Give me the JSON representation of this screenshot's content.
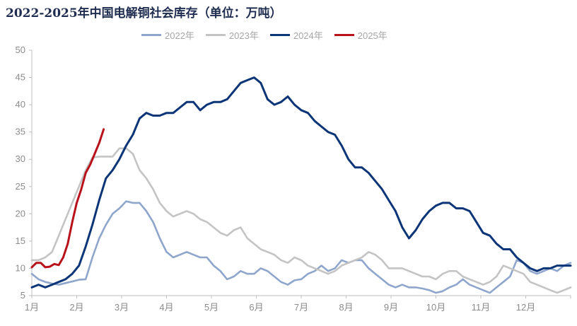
{
  "chart_data": {
    "type": "line",
    "title": "2022-2025年中国电解铜社会库存（单位：万吨）",
    "xlabel": "",
    "ylabel": "",
    "x_tick_labels": [
      "1月",
      "2月",
      "3月",
      "4月",
      "5月",
      "6月",
      "7月",
      "8月",
      "9月",
      "10月",
      "11月",
      "12月"
    ],
    "ylim": [
      5,
      50
    ],
    "yticks": [
      5,
      10,
      15,
      20,
      25,
      30,
      35,
      40,
      45,
      50
    ],
    "grid": false,
    "legend_position": "top",
    "series": [
      {
        "name": "2022年",
        "color": "#8ea6cc",
        "x": [
          0.0,
          0.15,
          0.3,
          0.45,
          0.6,
          0.75,
          0.9,
          1.05,
          1.2,
          1.35,
          1.5,
          1.65,
          1.8,
          1.95,
          2.1,
          2.25,
          2.4,
          2.55,
          2.7,
          2.85,
          3.0,
          3.15,
          3.3,
          3.45,
          3.6,
          3.75,
          3.9,
          4.05,
          4.2,
          4.35,
          4.5,
          4.65,
          4.8,
          4.95,
          5.1,
          5.25,
          5.4,
          5.55,
          5.7,
          5.85,
          6.0,
          6.15,
          6.3,
          6.45,
          6.6,
          6.75,
          6.9,
          7.05,
          7.2,
          7.35,
          7.5,
          7.65,
          7.8,
          7.95,
          8.1,
          8.25,
          8.4,
          8.55,
          8.7,
          8.85,
          9.0,
          9.15,
          9.3,
          9.45,
          9.6,
          9.75,
          9.9,
          10.05,
          10.2,
          10.35,
          10.5,
          10.65,
          10.8,
          10.95,
          11.1,
          11.25,
          11.4,
          11.55,
          11.7,
          11.85,
          12.0
        ],
        "values": [
          9.0,
          8.0,
          7.5,
          7.2,
          7.0,
          7.3,
          7.6,
          7.9,
          8.0,
          12.0,
          15.5,
          18.0,
          20.0,
          21.0,
          22.3,
          22.0,
          22.0,
          20.5,
          18.5,
          15.5,
          13.0,
          12.0,
          12.5,
          13.0,
          12.5,
          12.0,
          12.0,
          10.5,
          9.5,
          8.0,
          8.5,
          9.5,
          9.0,
          9.0,
          10.0,
          9.5,
          8.5,
          7.5,
          7.0,
          7.8,
          8.0,
          9.0,
          9.5,
          10.5,
          9.5,
          10.0,
          11.5,
          11.0,
          11.5,
          11.5,
          10.0,
          9.0,
          8.0,
          7.0,
          6.5,
          7.0,
          6.5,
          6.5,
          6.3,
          6.0,
          5.5,
          5.8,
          6.5,
          7.0,
          8.0,
          7.0,
          6.5,
          6.0,
          5.5,
          6.5,
          7.5,
          8.5,
          11.5,
          11.0,
          9.5,
          9.0,
          9.5,
          10.0,
          9.5,
          10.5,
          11.0
        ]
      },
      {
        "name": "2023年",
        "color": "#c4c4c4",
        "x": [
          0.0,
          0.15,
          0.3,
          0.45,
          0.6,
          0.75,
          0.9,
          1.05,
          1.2,
          1.35,
          1.5,
          1.65,
          1.8,
          1.95,
          2.1,
          2.25,
          2.4,
          2.55,
          2.7,
          2.85,
          3.0,
          3.15,
          3.3,
          3.45,
          3.6,
          3.75,
          3.9,
          4.05,
          4.2,
          4.35,
          4.5,
          4.65,
          4.8,
          4.95,
          5.1,
          5.25,
          5.4,
          5.55,
          5.7,
          5.85,
          6.0,
          6.15,
          6.3,
          6.45,
          6.6,
          6.75,
          6.9,
          7.05,
          7.2,
          7.35,
          7.5,
          7.65,
          7.8,
          7.95,
          8.1,
          8.25,
          8.4,
          8.55,
          8.7,
          8.85,
          9.0,
          9.15,
          9.3,
          9.45,
          9.6,
          9.75,
          9.9,
          10.05,
          10.2,
          10.35,
          10.5,
          10.65,
          10.8,
          10.95,
          11.1,
          11.25,
          11.4,
          11.55,
          11.7,
          11.85,
          12.0
        ],
        "values": [
          11.5,
          11.5,
          12.0,
          13.0,
          16.0,
          19.0,
          22.0,
          25.0,
          28.0,
          30.3,
          30.5,
          30.5,
          30.5,
          32.0,
          32.0,
          31.0,
          28.0,
          26.5,
          24.5,
          22.0,
          20.5,
          19.5,
          20.0,
          20.5,
          20.0,
          19.0,
          18.5,
          17.5,
          16.5,
          16.0,
          17.0,
          17.5,
          15.5,
          14.5,
          13.5,
          13.0,
          12.5,
          11.5,
          11.0,
          12.0,
          11.5,
          10.5,
          10.0,
          9.5,
          9.0,
          9.5,
          10.5,
          11.0,
          11.5,
          12.0,
          13.0,
          12.5,
          11.5,
          10.0,
          10.0,
          10.0,
          9.5,
          9.0,
          8.5,
          8.5,
          8.0,
          9.0,
          9.5,
          9.5,
          8.5,
          8.0,
          7.5,
          7.0,
          7.5,
          8.5,
          10.5,
          10.0,
          9.5,
          9.0,
          7.5,
          7.0,
          6.5,
          6.0,
          5.5,
          6.0,
          6.5
        ]
      },
      {
        "name": "2024年",
        "color": "#0c3578",
        "x": [
          0.0,
          0.15,
          0.3,
          0.45,
          0.6,
          0.75,
          0.9,
          1.05,
          1.2,
          1.35,
          1.5,
          1.65,
          1.8,
          1.95,
          2.1,
          2.25,
          2.4,
          2.55,
          2.7,
          2.85,
          3.0,
          3.15,
          3.3,
          3.45,
          3.6,
          3.75,
          3.9,
          4.05,
          4.2,
          4.35,
          4.5,
          4.65,
          4.8,
          4.95,
          5.1,
          5.25,
          5.4,
          5.55,
          5.7,
          5.85,
          6.0,
          6.15,
          6.3,
          6.45,
          6.6,
          6.75,
          6.9,
          7.05,
          7.2,
          7.35,
          7.5,
          7.65,
          7.8,
          7.95,
          8.1,
          8.25,
          8.4,
          8.55,
          8.7,
          8.85,
          9.0,
          9.15,
          9.3,
          9.45,
          9.6,
          9.75,
          9.9,
          10.05,
          10.2,
          10.35,
          10.5,
          10.65,
          10.8,
          10.95,
          11.1,
          11.25,
          11.4,
          11.55,
          11.7,
          11.85,
          12.0
        ],
        "values": [
          6.5,
          7.0,
          6.5,
          7.0,
          7.5,
          8.0,
          9.0,
          10.5,
          14.0,
          18.0,
          22.5,
          26.5,
          28.0,
          30.0,
          32.5,
          34.5,
          37.5,
          38.5,
          38.0,
          38.0,
          38.5,
          38.5,
          39.5,
          40.5,
          40.5,
          39.0,
          40.0,
          40.5,
          40.5,
          41.0,
          42.5,
          44.0,
          44.5,
          45.0,
          44.0,
          41.0,
          40.0,
          40.5,
          41.5,
          40.0,
          39.0,
          38.5,
          37.0,
          36.0,
          35.0,
          34.5,
          32.5,
          30.0,
          28.5,
          28.5,
          27.5,
          26.0,
          24.5,
          22.5,
          20.5,
          17.5,
          15.5,
          17.0,
          19.0,
          20.5,
          21.5,
          22.0,
          22.0,
          21.0,
          21.0,
          20.5,
          18.5,
          16.5,
          16.0,
          14.5,
          13.5,
          13.5,
          12.0,
          11.0,
          10.0,
          9.5,
          10.0,
          10.0,
          10.5,
          10.5,
          10.5
        ]
      },
      {
        "name": "2025年",
        "color": "#b8121b",
        "x": [
          0.0,
          0.1,
          0.2,
          0.3,
          0.4,
          0.5,
          0.6,
          0.7,
          0.8,
          0.9,
          1.0,
          1.1,
          1.2,
          1.3,
          1.4,
          1.5,
          1.6
        ],
        "values": [
          10.2,
          11.0,
          11.0,
          10.2,
          10.3,
          10.8,
          10.6,
          12.0,
          14.5,
          18.5,
          22.0,
          24.5,
          27.5,
          29.0,
          31.0,
          33.0,
          35.5
        ]
      }
    ]
  }
}
